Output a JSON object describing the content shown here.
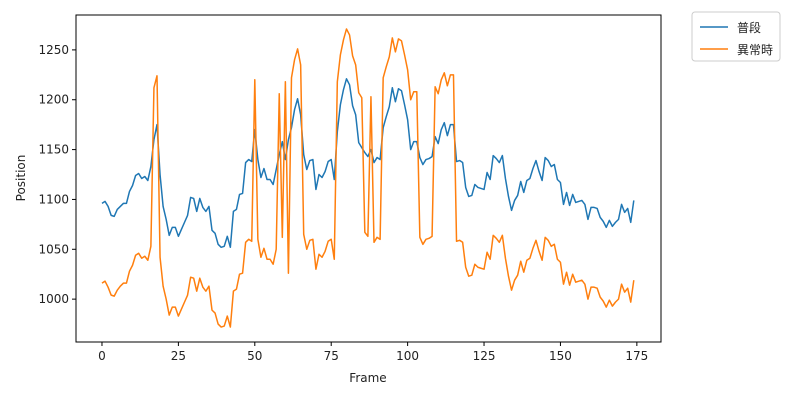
{
  "chart_data": {
    "type": "line",
    "xlabel": "Frame",
    "ylabel": "Position",
    "xlim": [
      -8.5,
      182.9
    ],
    "ylim": [
      957,
      1285
    ],
    "xticks": [
      0,
      25,
      50,
      75,
      100,
      125,
      150,
      175
    ],
    "yticks": [
      1000,
      1050,
      1100,
      1150,
      1200,
      1250
    ],
    "legend": "outside-upper-right",
    "x": [
      0,
      1,
      2,
      3,
      4,
      5,
      6,
      7,
      8,
      9,
      10,
      11,
      12,
      13,
      14,
      15,
      16,
      17,
      18,
      19,
      20,
      21,
      22,
      23,
      24,
      25,
      26,
      27,
      28,
      29,
      30,
      31,
      32,
      33,
      34,
      35,
      36,
      37,
      38,
      39,
      40,
      41,
      42,
      43,
      44,
      45,
      46,
      47,
      48,
      49,
      50,
      51,
      52,
      53,
      54,
      55,
      56,
      57,
      58,
      59,
      60,
      61,
      62,
      63,
      64,
      65,
      66,
      67,
      68,
      69,
      70,
      71,
      72,
      73,
      74,
      75,
      76,
      77,
      78,
      79,
      80,
      81,
      82,
      83,
      84,
      85,
      86,
      87,
      88,
      89,
      90,
      91,
      92,
      93,
      94,
      95,
      96,
      97,
      98,
      99,
      100,
      101,
      102,
      103,
      104,
      105,
      106,
      107,
      108,
      109,
      110,
      111,
      112,
      113,
      114,
      115,
      116,
      117,
      118,
      119,
      120,
      121,
      122,
      123,
      124,
      125,
      126,
      127,
      128,
      129,
      130,
      131,
      132,
      133,
      134,
      135,
      136,
      137,
      138,
      139,
      140,
      141,
      142,
      143,
      144,
      145,
      146,
      147,
      148,
      149,
      150,
      151,
      152,
      153,
      154,
      155,
      156,
      157,
      158,
      159,
      160,
      161,
      162,
      163,
      164,
      165,
      166,
      167,
      168,
      169,
      170,
      171,
      172,
      173,
      174
    ],
    "series": [
      {
        "name": "普段",
        "color": "#1f77b4",
        "values": [
          1096,
          1098,
          1093,
          1084,
          1083,
          1090,
          1093,
          1096,
          1096,
          1108,
          1114,
          1124,
          1126,
          1121,
          1123,
          1119,
          1133,
          1160,
          1175,
          1125,
          1093,
          1080,
          1064,
          1072,
          1072,
          1063,
          1070,
          1077,
          1084,
          1102,
          1101,
          1088,
          1101,
          1092,
          1088,
          1093,
          1069,
          1066,
          1055,
          1052,
          1053,
          1063,
          1052,
          1088,
          1090,
          1105,
          1106,
          1137,
          1140,
          1138,
          1170,
          1140,
          1122,
          1131,
          1120,
          1120,
          1115,
          1130,
          1145,
          1158,
          1140,
          1160,
          1172,
          1190,
          1201,
          1185,
          1145,
          1130,
          1139,
          1140,
          1110,
          1125,
          1122,
          1128,
          1138,
          1140,
          1120,
          1168,
          1195,
          1210,
          1221,
          1215,
          1194,
          1185,
          1157,
          1152,
          1147,
          1143,
          1150,
          1137,
          1142,
          1140,
          1172,
          1183,
          1193,
          1212,
          1198,
          1211,
          1209,
          1195,
          1180,
          1150,
          1158,
          1158,
          1142,
          1135,
          1140,
          1141,
          1143,
          1163,
          1156,
          1170,
          1177,
          1164,
          1175,
          1175,
          1138,
          1139,
          1137,
          1112,
          1103,
          1104,
          1115,
          1112,
          1111,
          1110,
          1127,
          1120,
          1144,
          1141,
          1137,
          1144,
          1121,
          1103,
          1089,
          1099,
          1104,
          1118,
          1107,
          1119,
          1121,
          1131,
          1139,
          1128,
          1119,
          1142,
          1139,
          1133,
          1135,
          1120,
          1117,
          1095,
          1107,
          1094,
          1105,
          1097,
          1098,
          1099,
          1095,
          1080,
          1092,
          1092,
          1091,
          1082,
          1078,
          1072,
          1079,
          1073,
          1077,
          1080,
          1095,
          1087,
          1091,
          1077,
          1099
        ]
      },
      {
        "name": "異常時",
        "color": "#ff7f0e",
        "values": [
          1016,
          1018,
          1012,
          1004,
          1003,
          1009,
          1013,
          1016,
          1016,
          1028,
          1034,
          1044,
          1046,
          1041,
          1043,
          1039,
          1053,
          1212,
          1224,
          1042,
          1013,
          1000,
          984,
          992,
          992,
          983,
          990,
          997,
          1004,
          1022,
          1021,
          1008,
          1021,
          1012,
          1008,
          1013,
          989,
          986,
          975,
          972,
          973,
          983,
          972,
          1008,
          1010,
          1025,
          1026,
          1057,
          1060,
          1058,
          1220,
          1060,
          1042,
          1051,
          1040,
          1040,
          1035,
          1050,
          1206,
          1062,
          1218,
          1026,
          1222,
          1240,
          1251,
          1235,
          1065,
          1050,
          1059,
          1060,
          1030,
          1045,
          1042,
          1048,
          1058,
          1060,
          1040,
          1218,
          1245,
          1260,
          1271,
          1265,
          1244,
          1235,
          1207,
          1202,
          1067,
          1063,
          1203,
          1057,
          1062,
          1060,
          1222,
          1233,
          1243,
          1262,
          1248,
          1261,
          1259,
          1245,
          1230,
          1200,
          1208,
          1208,
          1062,
          1055,
          1060,
          1061,
          1063,
          1213,
          1206,
          1220,
          1227,
          1214,
          1225,
          1225,
          1058,
          1059,
          1057,
          1032,
          1023,
          1024,
          1035,
          1032,
          1031,
          1030,
          1047,
          1040,
          1064,
          1061,
          1057,
          1064,
          1041,
          1023,
          1009,
          1019,
          1024,
          1038,
          1027,
          1039,
          1041,
          1051,
          1059,
          1048,
          1039,
          1062,
          1059,
          1053,
          1055,
          1040,
          1037,
          1015,
          1027,
          1014,
          1025,
          1017,
          1018,
          1019,
          1015,
          1000,
          1012,
          1012,
          1011,
          1002,
          998,
          992,
          999,
          993,
          997,
          1000,
          1015,
          1007,
          1011,
          997,
          1019
        ]
      }
    ]
  }
}
